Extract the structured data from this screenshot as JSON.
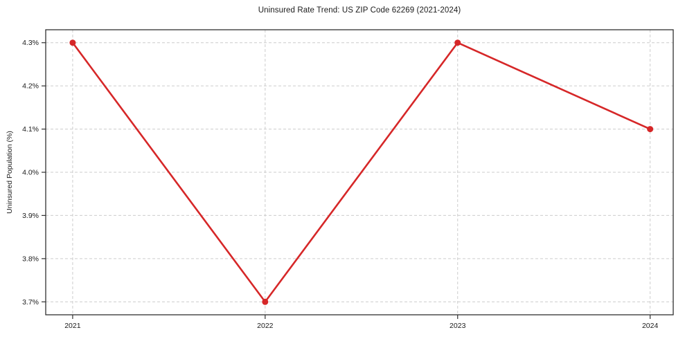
{
  "figure": {
    "background": "#ffffff",
    "border_color": "#2f2f2f",
    "text_color": "#1a1a1a"
  },
  "chart_data": {
    "type": "line",
    "title": "Uninsured Rate Trend: US ZIP Code 62269 (2021-2024)",
    "xlabel": "",
    "ylabel": "Uninsured Population (%)",
    "x": [
      2021,
      2022,
      2023,
      2024
    ],
    "x_tick_labels": [
      "2021",
      "2022",
      "2023",
      "2024"
    ],
    "series": [
      {
        "name": "Uninsured rate",
        "values": [
          4.3,
          3.7,
          4.3,
          4.1
        ],
        "color": "#d62728",
        "marker": "circle"
      }
    ],
    "y_tick_values": [
      3.7,
      3.8,
      3.9,
      4.0,
      4.1,
      4.2,
      4.3
    ],
    "y_tick_labels": [
      "3.7%",
      "3.8%",
      "3.9%",
      "4.0%",
      "4.1%",
      "4.2%",
      "4.3%"
    ],
    "ylim": [
      3.67,
      4.33
    ],
    "xlim": [
      2020.86,
      2024.12
    ],
    "grid": true,
    "grid_color": "#cccccc",
    "grid_style": "dashed",
    "legend": "none"
  }
}
